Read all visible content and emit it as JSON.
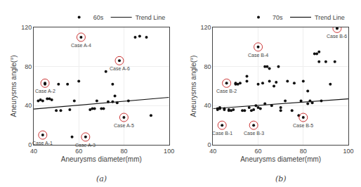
{
  "chart_data": [
    {
      "type": "scatter",
      "subtitle": "(a)",
      "xlabel": "Aneurysms diameter(mm)",
      "ylabel": "Aneurysms angle(°)",
      "xlim": [
        40,
        100
      ],
      "ylim": [
        0,
        120
      ],
      "xticks": [
        40,
        60,
        80,
        100
      ],
      "yticks": [
        0,
        40,
        80,
        120
      ],
      "grid": true,
      "legend": "upper right",
      "series": [
        {
          "name": "60s",
          "type": "scatter",
          "color": "#111111",
          "x": [
            42,
            43,
            44,
            45,
            45,
            46,
            47,
            48,
            50,
            51,
            52,
            55,
            56,
            58,
            60,
            61,
            63,
            65,
            66,
            67,
            68,
            70,
            71,
            72,
            73,
            75,
            75,
            76,
            77,
            78,
            80,
            82,
            85,
            87,
            90,
            92,
            44,
            57
          ],
          "values": [
            45,
            46,
            45,
            63,
            62,
            47,
            47,
            46,
            35,
            62,
            35,
            62,
            36,
            45,
            65,
            110,
            8,
            36,
            37,
            37,
            45,
            37,
            37,
            75,
            44,
            44,
            62,
            50,
            43,
            86,
            28,
            45,
            110,
            111,
            110,
            30,
            10,
            8
          ]
        },
        {
          "name": "Trend Line",
          "type": "line",
          "color": "#111111",
          "x": [
            40,
            100
          ],
          "values": [
            36.5,
            48.5
          ]
        }
      ],
      "annotations": [
        {
          "text": "Case A-1",
          "x": 44,
          "y": 10,
          "color": "#cc3333"
        },
        {
          "text": "Case A-2",
          "x": 45,
          "y": 63,
          "color": "#cc3333"
        },
        {
          "text": "Case A-3",
          "x": 63,
          "y": 8,
          "color": "#cc3333"
        },
        {
          "text": "Case A-4",
          "x": 61,
          "y": 110,
          "color": "#cc3333"
        },
        {
          "text": "Case A-5",
          "x": 80,
          "y": 28,
          "color": "#cc3333"
        },
        {
          "text": "Case A-6",
          "x": 78,
          "y": 86,
          "color": "#cc3333"
        }
      ]
    },
    {
      "type": "scatter",
      "subtitle": "(b)",
      "xlabel": "Aneurysms diameter(mm)",
      "ylabel": "Aneurysms angle(°)",
      "xlim": [
        40,
        100
      ],
      "ylim": [
        0,
        120
      ],
      "xticks": [
        40,
        60,
        80,
        100
      ],
      "yticks": [
        0,
        40,
        80,
        120
      ],
      "grid": true,
      "legend": "upper right",
      "series": [
        {
          "name": "70s",
          "type": "scatter",
          "color": "#111111",
          "x": [
            42,
            42,
            43,
            43,
            45,
            45,
            46,
            47,
            47,
            48,
            49,
            50,
            50,
            51,
            52,
            53,
            54,
            55,
            55,
            56,
            57,
            58,
            59,
            60,
            60,
            61,
            62,
            63,
            63,
            64,
            65,
            65,
            66,
            67,
            68,
            69,
            70,
            70,
            72,
            73,
            75,
            76,
            78,
            79,
            80,
            80,
            82,
            82,
            83,
            84,
            85,
            86,
            87,
            87,
            88,
            90,
            92,
            94,
            95,
            44,
            58,
            60
          ],
          "values": [
            37,
            36,
            38,
            37,
            37,
            36,
            63,
            36,
            35,
            35,
            36,
            62,
            63,
            62,
            63,
            35,
            35,
            70,
            65,
            38,
            35,
            36,
            40,
            38,
            62,
            37,
            63,
            42,
            80,
            80,
            78,
            65,
            40,
            60,
            64,
            80,
            35,
            38,
            45,
            65,
            35,
            63,
            30,
            45,
            65,
            28,
            42,
            55,
            45,
            43,
            93,
            93,
            95,
            85,
            45,
            85,
            62,
            85,
            119,
            20,
            20,
            100
          ]
        },
        {
          "name": "Trend Line",
          "type": "line",
          "color": "#111111",
          "x": [
            40,
            100
          ],
          "values": [
            37,
            47
          ]
        }
      ],
      "annotations": [
        {
          "text": "Case B-1",
          "x": 44,
          "y": 20,
          "color": "#cc3333"
        },
        {
          "text": "Case B-2",
          "x": 46,
          "y": 63,
          "color": "#cc3333"
        },
        {
          "text": "Case B-3",
          "x": 58,
          "y": 20,
          "color": "#cc3333"
        },
        {
          "text": "Case B-4",
          "x": 60,
          "y": 100,
          "color": "#cc3333"
        },
        {
          "text": "Case B-5",
          "x": 80,
          "y": 28,
          "color": "#cc3333"
        },
        {
          "text": "Case B-6",
          "x": 95,
          "y": 119,
          "color": "#cc3333"
        }
      ]
    }
  ]
}
